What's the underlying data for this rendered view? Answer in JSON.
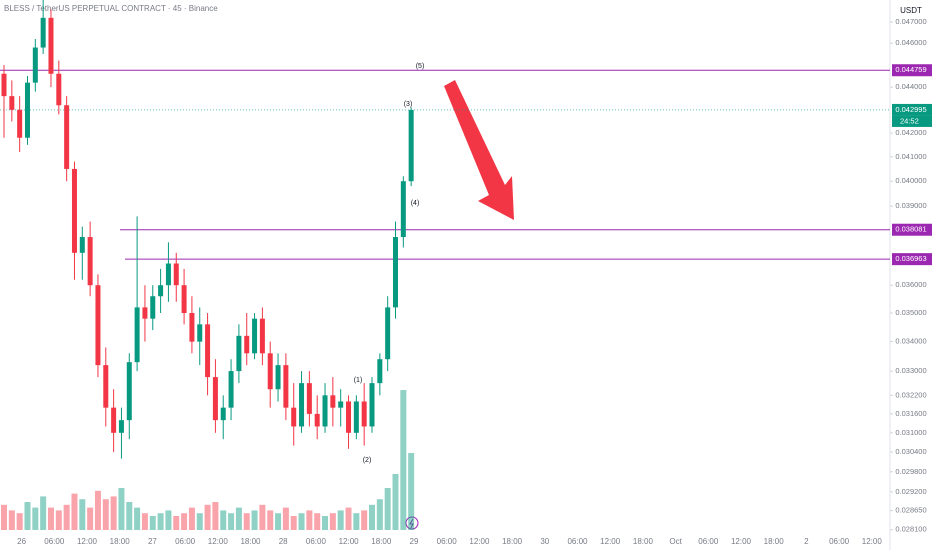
{
  "chart_data": {
    "type": "candlestick",
    "title": "BLESS / TetherUS PERPETUAL CONTRACT · 45 · Binance",
    "currency": "USDT",
    "log_scale": true,
    "up_color": "#089981",
    "down_color": "#f23645",
    "ylim": [
      0.02781,
      0.04806
    ],
    "yticks": [
      {
        "value": 0.047,
        "label": "0.047000"
      },
      {
        "value": 0.046,
        "label": "0.046000"
      },
      {
        "value": 0.044,
        "label": "0.044000"
      },
      {
        "value": 0.042,
        "label": "0.042000"
      },
      {
        "value": 0.041,
        "label": "0.041000"
      },
      {
        "value": 0.04,
        "label": "0.040000"
      },
      {
        "value": 0.039,
        "label": "0.039000"
      },
      {
        "value": 0.036,
        "label": "0.036000"
      },
      {
        "value": 0.035,
        "label": "0.035000"
      },
      {
        "value": 0.034,
        "label": "0.034000"
      },
      {
        "value": 0.033,
        "label": "0.033000"
      },
      {
        "value": 0.0322,
        "label": "0.032200"
      },
      {
        "value": 0.0316,
        "label": "0.031600"
      },
      {
        "value": 0.031,
        "label": "0.031000"
      },
      {
        "value": 0.0304,
        "label": "0.030400"
      },
      {
        "value": 0.0298,
        "label": "0.029800"
      },
      {
        "value": 0.0292,
        "label": "0.029200"
      },
      {
        "value": 0.02865,
        "label": "0.028650"
      },
      {
        "value": 0.0281,
        "label": "0.028100"
      }
    ],
    "x_labels": [
      "26",
      "06:00",
      "12:00",
      "18:00",
      "27",
      "06:00",
      "12:00",
      "18:00",
      "28",
      "06:00",
      "12:00",
      "18:00",
      "29",
      "06:00",
      "12:00",
      "18:00",
      "30",
      "06:00",
      "12:00",
      "18:00",
      "Oct",
      "06:00",
      "12:00",
      "18:00",
      "2",
      "06:00",
      "12:00"
    ],
    "open": [
      0.0446,
      0.0436,
      0.043,
      0.0418,
      0.0442,
      0.0458,
      0.0472,
      0.0446,
      0.0432,
      0.0405,
      0.0372,
      0.0378,
      0.036,
      0.0332,
      0.0318,
      0.031,
      0.0314,
      0.0333,
      0.0352,
      0.0348,
      0.0356,
      0.036,
      0.0368,
      0.036,
      0.035,
      0.034,
      0.0346,
      0.0328,
      0.0314,
      0.0318,
      0.033,
      0.0342,
      0.0336,
      0.0348,
      0.0336,
      0.0324,
      0.0332,
      0.0318,
      0.0312,
      0.0326,
      0.0316,
      0.0312,
      0.0322,
      0.0318,
      0.032,
      0.031,
      0.032,
      0.0312,
      0.0326,
      0.0334,
      0.0352,
      0.0378,
      0.04
    ],
    "high": [
      0.045,
      0.0443,
      0.0436,
      0.0445,
      0.0462,
      0.0481,
      0.0476,
      0.0452,
      0.0436,
      0.0408,
      0.0382,
      0.0384,
      0.0364,
      0.0338,
      0.0324,
      0.0318,
      0.0336,
      0.0386,
      0.036,
      0.036,
      0.0366,
      0.0376,
      0.0372,
      0.0366,
      0.0356,
      0.0352,
      0.035,
      0.0334,
      0.0322,
      0.0334,
      0.0346,
      0.035,
      0.035,
      0.0352,
      0.034,
      0.0336,
      0.0336,
      0.0326,
      0.033,
      0.033,
      0.0322,
      0.0326,
      0.0328,
      0.0324,
      0.0322,
      0.0322,
      0.0326,
      0.0328,
      0.0336,
      0.0356,
      0.0384,
      0.0402,
      0.0431
    ],
    "low": [
      0.0418,
      0.0425,
      0.0412,
      0.0415,
      0.0438,
      0.0455,
      0.044,
      0.0428,
      0.04,
      0.0362,
      0.0362,
      0.0356,
      0.0328,
      0.0312,
      0.0304,
      0.0302,
      0.0308,
      0.033,
      0.034,
      0.0344,
      0.035,
      0.0354,
      0.0354,
      0.0346,
      0.0336,
      0.0332,
      0.0322,
      0.031,
      0.0308,
      0.0314,
      0.0326,
      0.0332,
      0.0334,
      0.0332,
      0.0318,
      0.032,
      0.0314,
      0.0306,
      0.031,
      0.0312,
      0.0308,
      0.031,
      0.0312,
      0.0312,
      0.0305,
      0.0308,
      0.0306,
      0.031,
      0.0322,
      0.033,
      0.0348,
      0.0374,
      0.0398
    ],
    "close": [
      0.0436,
      0.043,
      0.0418,
      0.0442,
      0.0458,
      0.0472,
      0.0446,
      0.0432,
      0.0405,
      0.0372,
      0.0378,
      0.036,
      0.0332,
      0.0318,
      0.031,
      0.0314,
      0.0333,
      0.0352,
      0.0348,
      0.0356,
      0.036,
      0.0368,
      0.036,
      0.035,
      0.034,
      0.0346,
      0.0328,
      0.0314,
      0.0318,
      0.033,
      0.0342,
      0.0336,
      0.0348,
      0.0336,
      0.0324,
      0.0332,
      0.0318,
      0.0312,
      0.0326,
      0.0316,
      0.0312,
      0.0322,
      0.0318,
      0.032,
      0.031,
      0.032,
      0.0312,
      0.0326,
      0.0334,
      0.0352,
      0.0378,
      0.04,
      0.042995
    ],
    "volume": [
      18,
      14,
      12,
      20,
      16,
      24,
      16,
      14,
      18,
      26,
      22,
      16,
      28,
      22,
      24,
      30,
      20,
      16,
      12,
      10,
      12,
      14,
      10,
      12,
      16,
      12,
      18,
      20,
      14,
      12,
      16,
      12,
      14,
      18,
      14,
      12,
      16,
      10,
      12,
      14,
      12,
      10,
      12,
      14,
      16,
      12,
      14,
      18,
      22,
      30,
      40,
      100,
      55
    ],
    "levels": [
      {
        "value": 0.044759,
        "label": "0.044759",
        "color": "#9c27b0"
      },
      {
        "value": 0.042995,
        "label": "0.042995",
        "color": "#089981"
      },
      {
        "value": 0.038081,
        "label": "0.038081",
        "color": "#9c27b0"
      },
      {
        "value": 0.036963,
        "label": "0.036963",
        "color": "#9c27b0"
      }
    ],
    "countdown": "24:52",
    "annotations": [
      "(5)",
      "(3)",
      "(4)",
      "(1)",
      "(2)"
    ]
  }
}
